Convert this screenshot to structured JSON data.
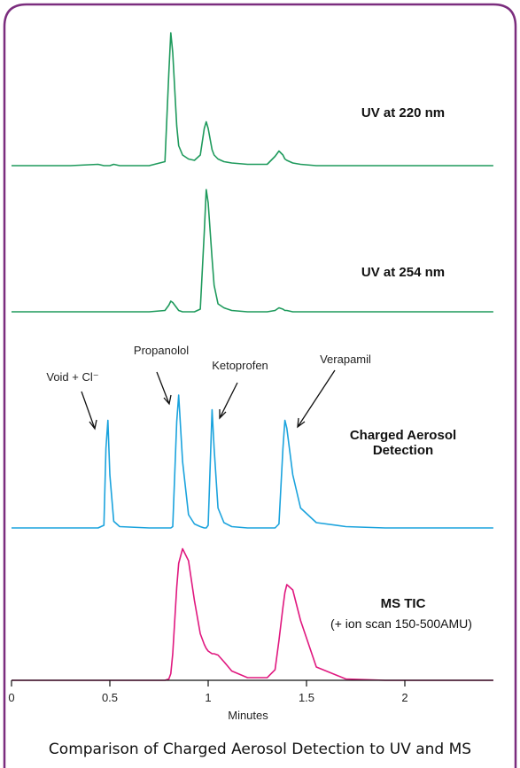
{
  "chart_data": {
    "type": "line",
    "title": "Comparison of Charged Aerosol Detection to UV and MS",
    "xlabel": "Minutes",
    "note": "(+ ion scan 150-500AMU)",
    "annotations": [
      "Void + Cl⁻",
      "Propanolol",
      "Ketoprofen",
      "Verapamil"
    ],
    "xlim": [
      0,
      2.45
    ],
    "xticks": [
      0,
      0.5,
      1,
      1.5,
      2
    ],
    "ylim": [
      0,
      100
    ],
    "x": [
      0,
      0.3,
      0.44,
      0.47,
      0.48,
      0.49,
      0.5,
      0.52,
      0.55,
      0.7,
      0.78,
      0.8,
      0.81,
      0.82,
      0.84,
      0.85,
      0.87,
      0.9,
      0.93,
      0.96,
      0.98,
      0.99,
      1.0,
      1.02,
      1.03,
      1.05,
      1.08,
      1.12,
      1.2,
      1.3,
      1.34,
      1.36,
      1.38,
      1.39,
      1.4,
      1.43,
      1.47,
      1.55,
      1.7,
      1.9,
      2.1,
      2.45
    ],
    "series": [
      {
        "name": "UV at 220 nm",
        "color": "#1e9a5c",
        "values": [
          0,
          0,
          1,
          0,
          0,
          0,
          0,
          1,
          0,
          0,
          3,
          70,
          100,
          85,
          30,
          15,
          8,
          5,
          4,
          8,
          28,
          33,
          28,
          12,
          8,
          5,
          3,
          2,
          1,
          1,
          7,
          11,
          8,
          5,
          4,
          2,
          1,
          0,
          0,
          0,
          0,
          0
        ]
      },
      {
        "name": "UV at 254 nm",
        "color": "#1e9a5c",
        "values": [
          0,
          0,
          0,
          0,
          0,
          0,
          0,
          0,
          0,
          0,
          1,
          5,
          8,
          7,
          3,
          1,
          0,
          0,
          0,
          2,
          60,
          92,
          82,
          40,
          20,
          6,
          3,
          1,
          0,
          0,
          1,
          3,
          2,
          1,
          1,
          0,
          0,
          0,
          0,
          0,
          0,
          0
        ]
      },
      {
        "name": "Charged Aerosol Detection",
        "color": "#1ba3dd",
        "values": [
          0,
          0,
          0,
          2,
          60,
          81,
          40,
          5,
          1,
          0,
          0,
          0,
          0,
          1,
          80,
          100,
          50,
          10,
          3,
          1,
          0,
          0,
          2,
          89,
          60,
          15,
          4,
          1,
          0,
          0,
          0,
          3,
          60,
          81,
          75,
          40,
          15,
          4,
          1,
          0,
          0,
          0
        ]
      },
      {
        "name": "MS TIC",
        "color": "#e0187f",
        "values": [
          0,
          0,
          0,
          0,
          0,
          0,
          0,
          0,
          0,
          0,
          0,
          1,
          5,
          20,
          70,
          88,
          99,
          90,
          60,
          35,
          27,
          24,
          22,
          20,
          20,
          19,
          14,
          7,
          2,
          2,
          8,
          30,
          55,
          66,
          72,
          68,
          45,
          10,
          1,
          0,
          0,
          0
        ]
      }
    ]
  }
}
